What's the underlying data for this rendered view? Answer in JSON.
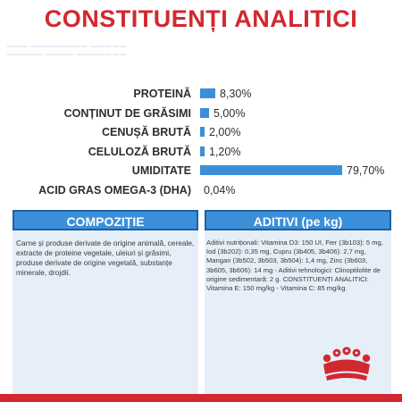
{
  "title": "CONSTITUENȚI ANALITICI",
  "colors": {
    "accent_red": "#d2282f",
    "bar_blue": "#3b8fd9",
    "box_bg": "#e6eff8",
    "box_border": "#1f5fa0"
  },
  "constituents": [
    {
      "label": "PROTEINĂ",
      "value": "8,30%",
      "percent": 8.3
    },
    {
      "label": "CONȚINUT DE GRĂSIMI",
      "value": "5,00%",
      "percent": 5.0
    },
    {
      "label": "CENUȘĂ BRUTĂ",
      "value": "2,00%",
      "percent": 2.0
    },
    {
      "label": "CELULOZĂ BRUTĂ",
      "value": "1,20%",
      "percent": 1.2
    },
    {
      "label": "UMIDITATE",
      "value": "79,70%",
      "percent": 79.7
    },
    {
      "label": "ACID GRAS OMEGA-3 (DHA)",
      "value": "0,04%",
      "percent": 0.04
    }
  ],
  "composition": {
    "header": "COMPOZIȚIE",
    "text": "Carne și produse derivate de origine animală, cereale, extracte de proteine vegetale, uleiuri și grăsimi, produse derivate de origine vegetală, substanțe minerale, drojdii."
  },
  "additives": {
    "header": "ADITIVI (pe kg)",
    "text": "Aditivi nutriționali: Vitamina D3: 150 UI, Fier (3b103): 5 mg, Iod (3b202): 0,35 mg, Cupru (3b405, 3b406): 2,7 mg, Mangan (3b502, 3b503, 3b504): 1,4 mg, Zinc (3b603, 3b605, 3b606): 14 mg - Aditivi tehnologici: Clinoptilolite de origine sedimentară: 2 g. CONSTITUENȚI ANALITICI: Vitamina E: 150 mg/kg - Vitamina C: 85 mg/kg."
  },
  "logo": {
    "icon": "royal-canin-crown-icon"
  }
}
